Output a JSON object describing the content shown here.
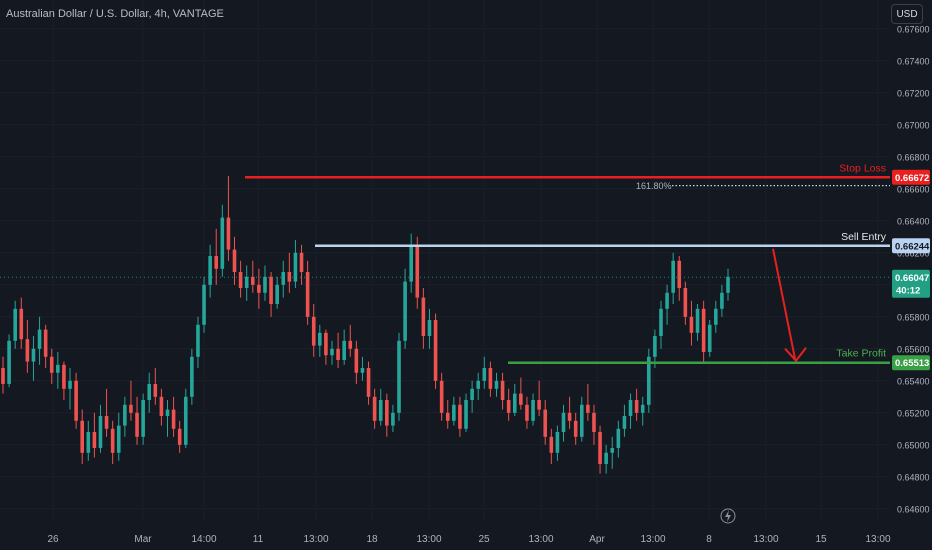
{
  "header": {
    "title": "Australian Dollar / U.S. Dollar, 4h, VANTAGE",
    "currency_button": "USD"
  },
  "colors": {
    "background": "#141821",
    "bull": "#26a69a",
    "bear": "#ef5350",
    "stop_loss": "#e8201f",
    "sell_entry": "#b9d3f2",
    "take_profit": "#3aa046",
    "arrow": "#e8201f"
  },
  "icons": {
    "bottom": "lightning-icon"
  },
  "chart_data": {
    "type": "candlestick",
    "title": "Australian Dollar / U.S. Dollar, 4h, VANTAGE",
    "y_ticks": [
      "0.67600",
      "0.67400",
      "0.67200",
      "0.67000",
      "0.66800",
      "0.66600",
      "0.66400",
      "0.66200",
      "0.66000",
      "0.65800",
      "0.65600",
      "0.65400",
      "0.65200",
      "0.65000",
      "0.64800",
      "0.64600"
    ],
    "ylim": [
      0.6453,
      0.6778
    ],
    "x_ticks": [
      "26",
      "Mar",
      "14:00",
      "11",
      "13:00",
      "18",
      "13:00",
      "25",
      "13:00",
      "Apr",
      "13:00",
      "8",
      "13:00",
      "15",
      "13:00"
    ],
    "levels": [
      {
        "name": "Stop Loss",
        "value": 0.66672,
        "label": "0.66672"
      },
      {
        "name": "Sell Entry",
        "value": 0.66244,
        "label": "0.66244"
      },
      {
        "name": "Take Profit",
        "value": 0.65513,
        "label": "0.65513"
      }
    ],
    "fib_label": "161.80%",
    "fib_value": 0.6662,
    "current_price": "0.66047",
    "countdown": "40:12",
    "candles": [
      [
        0.6548,
        0.6555,
        0.6532,
        0.6538
      ],
      [
        0.6538,
        0.6569,
        0.6536,
        0.6565
      ],
      [
        0.6565,
        0.659,
        0.656,
        0.6585
      ],
      [
        0.6585,
        0.6592,
        0.656,
        0.6566
      ],
      [
        0.6566,
        0.6578,
        0.6545,
        0.6552
      ],
      [
        0.6552,
        0.6568,
        0.654,
        0.656
      ],
      [
        0.656,
        0.658,
        0.655,
        0.6572
      ],
      [
        0.6572,
        0.6575,
        0.6548,
        0.6555
      ],
      [
        0.6555,
        0.656,
        0.6538,
        0.6545
      ],
      [
        0.6545,
        0.6558,
        0.6535,
        0.655
      ],
      [
        0.655,
        0.6552,
        0.6528,
        0.6535
      ],
      [
        0.6535,
        0.6548,
        0.6522,
        0.654
      ],
      [
        0.654,
        0.6545,
        0.651,
        0.6515
      ],
      [
        0.6515,
        0.6522,
        0.6488,
        0.6495
      ],
      [
        0.6495,
        0.6515,
        0.649,
        0.6508
      ],
      [
        0.6508,
        0.652,
        0.6492,
        0.6498
      ],
      [
        0.6498,
        0.6525,
        0.6495,
        0.6518
      ],
      [
        0.6518,
        0.6535,
        0.6505,
        0.651
      ],
      [
        0.651,
        0.6515,
        0.6488,
        0.6495
      ],
      [
        0.6495,
        0.652,
        0.649,
        0.6512
      ],
      [
        0.6512,
        0.653,
        0.6505,
        0.6525
      ],
      [
        0.6525,
        0.654,
        0.6515,
        0.652
      ],
      [
        0.652,
        0.653,
        0.65,
        0.6505
      ],
      [
        0.6505,
        0.6532,
        0.65,
        0.6528
      ],
      [
        0.6528,
        0.6545,
        0.652,
        0.6538
      ],
      [
        0.6538,
        0.6548,
        0.6525,
        0.653
      ],
      [
        0.653,
        0.6535,
        0.6512,
        0.6518
      ],
      [
        0.6518,
        0.6528,
        0.6505,
        0.6522
      ],
      [
        0.6522,
        0.653,
        0.6505,
        0.651
      ],
      [
        0.651,
        0.6515,
        0.6495,
        0.65
      ],
      [
        0.65,
        0.6535,
        0.6498,
        0.653
      ],
      [
        0.653,
        0.656,
        0.6525,
        0.6555
      ],
      [
        0.6555,
        0.658,
        0.6548,
        0.6575
      ],
      [
        0.6575,
        0.6605,
        0.657,
        0.66
      ],
      [
        0.66,
        0.6625,
        0.6592,
        0.6618
      ],
      [
        0.6618,
        0.6635,
        0.66,
        0.661
      ],
      [
        0.661,
        0.665,
        0.6605,
        0.6642
      ],
      [
        0.6642,
        0.6668,
        0.6615,
        0.6622
      ],
      [
        0.6622,
        0.663,
        0.66,
        0.6608
      ],
      [
        0.6608,
        0.6615,
        0.6592,
        0.6598
      ],
      [
        0.6598,
        0.6612,
        0.659,
        0.6605
      ],
      [
        0.6605,
        0.6615,
        0.6595,
        0.66
      ],
      [
        0.66,
        0.661,
        0.6585,
        0.6595
      ],
      [
        0.6595,
        0.6612,
        0.659,
        0.6605
      ],
      [
        0.6605,
        0.6608,
        0.658,
        0.6588
      ],
      [
        0.6588,
        0.6605,
        0.6585,
        0.66
      ],
      [
        0.66,
        0.6615,
        0.6592,
        0.6608
      ],
      [
        0.6608,
        0.662,
        0.6595,
        0.6602
      ],
      [
        0.6602,
        0.6628,
        0.6598,
        0.662
      ],
      [
        0.662,
        0.6625,
        0.66,
        0.6608
      ],
      [
        0.6608,
        0.6615,
        0.6575,
        0.658
      ],
      [
        0.658,
        0.6588,
        0.6555,
        0.6562
      ],
      [
        0.6562,
        0.6575,
        0.6555,
        0.657
      ],
      [
        0.657,
        0.6572,
        0.655,
        0.6556
      ],
      [
        0.6556,
        0.6565,
        0.655,
        0.656
      ],
      [
        0.656,
        0.657,
        0.6548,
        0.6553
      ],
      [
        0.6553,
        0.6572,
        0.655,
        0.6565
      ],
      [
        0.6565,
        0.6575,
        0.6555,
        0.656
      ],
      [
        0.656,
        0.6565,
        0.6538,
        0.6545
      ],
      [
        0.6545,
        0.6555,
        0.654,
        0.6548
      ],
      [
        0.6548,
        0.6552,
        0.6525,
        0.653
      ],
      [
        0.653,
        0.6535,
        0.651,
        0.6515
      ],
      [
        0.6515,
        0.6535,
        0.6512,
        0.6528
      ],
      [
        0.6528,
        0.6532,
        0.6505,
        0.6512
      ],
      [
        0.6512,
        0.6525,
        0.6508,
        0.652
      ],
      [
        0.652,
        0.657,
        0.6515,
        0.6565
      ],
      [
        0.6565,
        0.661,
        0.656,
        0.6602
      ],
      [
        0.6602,
        0.6632,
        0.6595,
        0.6625
      ],
      [
        0.6625,
        0.663,
        0.6585,
        0.6592
      ],
      [
        0.6592,
        0.6598,
        0.656,
        0.6568
      ],
      [
        0.6568,
        0.6585,
        0.656,
        0.6578
      ],
      [
        0.6578,
        0.6582,
        0.6535,
        0.654
      ],
      [
        0.654,
        0.6545,
        0.6515,
        0.652
      ],
      [
        0.652,
        0.6528,
        0.651,
        0.6515
      ],
      [
        0.6515,
        0.653,
        0.6512,
        0.6525
      ],
      [
        0.6525,
        0.653,
        0.6505,
        0.651
      ],
      [
        0.651,
        0.6532,
        0.6508,
        0.6528
      ],
      [
        0.6528,
        0.654,
        0.652,
        0.6535
      ],
      [
        0.6535,
        0.6545,
        0.6528,
        0.654
      ],
      [
        0.654,
        0.6555,
        0.6535,
        0.6548
      ],
      [
        0.6548,
        0.6552,
        0.653,
        0.6535
      ],
      [
        0.6535,
        0.6545,
        0.653,
        0.654
      ],
      [
        0.654,
        0.6545,
        0.6522,
        0.6528
      ],
      [
        0.6528,
        0.6535,
        0.6515,
        0.652
      ],
      [
        0.652,
        0.6538,
        0.6518,
        0.6532
      ],
      [
        0.6532,
        0.6542,
        0.6522,
        0.6525
      ],
      [
        0.6525,
        0.653,
        0.651,
        0.6515
      ],
      [
        0.6515,
        0.6532,
        0.6512,
        0.6528
      ],
      [
        0.6528,
        0.654,
        0.6518,
        0.6522
      ],
      [
        0.6522,
        0.6528,
        0.65,
        0.6505
      ],
      [
        0.6505,
        0.651,
        0.6488,
        0.6495
      ],
      [
        0.6495,
        0.6512,
        0.649,
        0.6508
      ],
      [
        0.6508,
        0.6525,
        0.6502,
        0.652
      ],
      [
        0.652,
        0.653,
        0.651,
        0.6515
      ],
      [
        0.6515,
        0.652,
        0.65,
        0.6505
      ],
      [
        0.6505,
        0.653,
        0.6502,
        0.6525
      ],
      [
        0.6525,
        0.6538,
        0.6515,
        0.652
      ],
      [
        0.652,
        0.6525,
        0.65,
        0.6508
      ],
      [
        0.6508,
        0.6512,
        0.6482,
        0.6488
      ],
      [
        0.6488,
        0.65,
        0.6482,
        0.6495
      ],
      [
        0.6495,
        0.6505,
        0.6485,
        0.6498
      ],
      [
        0.6498,
        0.6515,
        0.6492,
        0.651
      ],
      [
        0.651,
        0.6525,
        0.6505,
        0.6518
      ],
      [
        0.6518,
        0.6532,
        0.651,
        0.6528
      ],
      [
        0.6528,
        0.6535,
        0.6515,
        0.652
      ],
      [
        0.652,
        0.653,
        0.6512,
        0.6525
      ],
      [
        0.6525,
        0.656,
        0.652,
        0.6555
      ],
      [
        0.6555,
        0.6572,
        0.6548,
        0.6568
      ],
      [
        0.6568,
        0.659,
        0.656,
        0.6585
      ],
      [
        0.6585,
        0.66,
        0.6575,
        0.6595
      ],
      [
        0.6595,
        0.662,
        0.6588,
        0.6615
      ],
      [
        0.6615,
        0.6618,
        0.659,
        0.6598
      ],
      [
        0.6598,
        0.6602,
        0.6575,
        0.658
      ],
      [
        0.658,
        0.659,
        0.6562,
        0.657
      ],
      [
        0.657,
        0.6588,
        0.6565,
        0.6585
      ],
      [
        0.6585,
        0.659,
        0.6552,
        0.6558
      ],
      [
        0.6558,
        0.6578,
        0.6555,
        0.6575
      ],
      [
        0.6575,
        0.659,
        0.657,
        0.6585
      ],
      [
        0.6585,
        0.66,
        0.658,
        0.6595
      ],
      [
        0.6595,
        0.661,
        0.659,
        0.6605
      ]
    ]
  },
  "annotations": {
    "stop_loss_label": "Stop Loss",
    "sell_entry_label": "Sell Entry",
    "take_profit_label": "Take Profit"
  }
}
